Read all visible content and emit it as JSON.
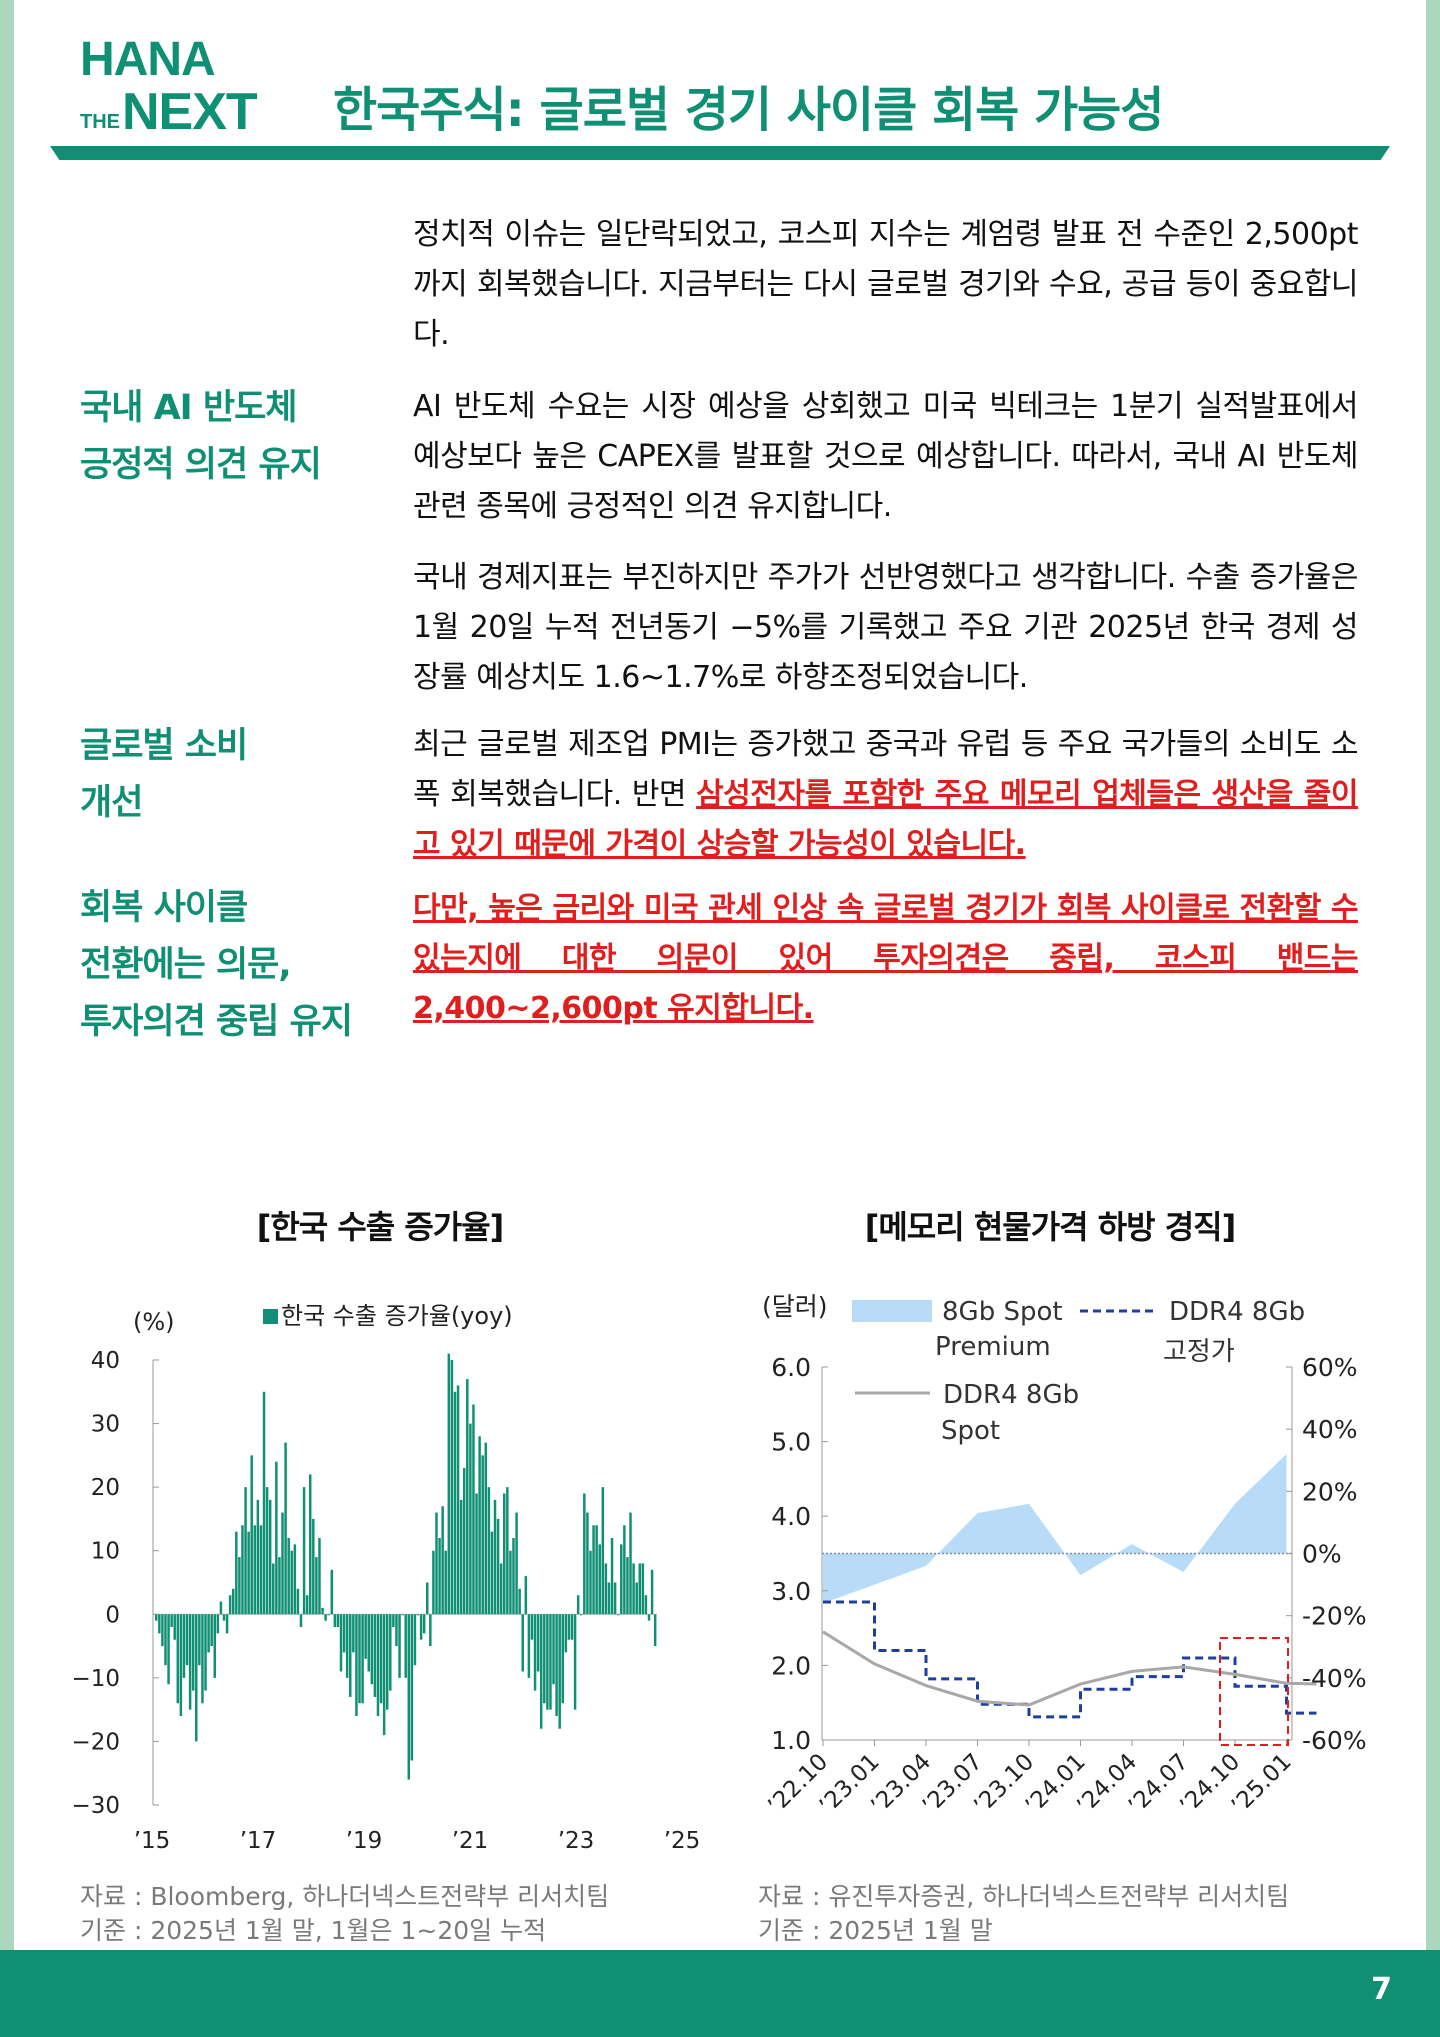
{
  "header": {
    "logo_top": "HANA",
    "logo_the": "THE",
    "logo_next": "NEXT",
    "title": "한국주식: 글로벌 경기 사이클 회복 가능성"
  },
  "sections": [
    {
      "label": "",
      "body": "정치적 이슈는 일단락되었고, 코스피 지수는 계엄령 발표 전 수준인 2,500pt 까지 회복했습니다. 지금부터는 다시 글로벌 경기와 수요, 공급 등이 중요합니다."
    },
    {
      "label": "국내 AI 반도체\n긍정적 의견 유지",
      "body": "AI 반도체 수요는 시장 예상을 상회했고 미국 빅테크는 1분기 실적발표에서 예상보다 높은 CAPEX를 발표할 것으로 예상합니다. 따라서, 국내 AI 반도체 관련 종목에 긍정적인 의견 유지합니다."
    },
    {
      "label": "",
      "body": "국내 경제지표는 부진하지만 주가가 선반영했다고 생각합니다. 수출 증가율은 1월 20일 누적 전년동기 −5%를 기록했고 주요 기관 2025년 한국 경제 성장률 예상치도 1.6~1.7%로 하향조정되었습니다."
    },
    {
      "label": "글로벌 소비\n개선",
      "body": "최근 글로벌 제조업 PMI는 증가했고 중국과 유럽 등 주요 국가들의 소비도 소폭 회복했습니다. 반면 ",
      "highlight": "삼성전자를 포함한 주요 메모리 업체들은 생산을 줄이고 있기 때문에 가격이 상승할 가능성이 있습니다."
    },
    {
      "label": "회복 사이클\n전환에는 의문,\n투자의견 중립 유지",
      "body": "",
      "highlight": "다만, 높은 금리와 미국 관세 인상 속 글로벌 경기가 회복 사이클로 전환할 수 있는지에 대한 의문이 있어 투자의견은 중립, 코스피 밴드는 2,400~2,600pt 유지합니다."
    }
  ],
  "charts": {
    "left_title": "[한국 수출 증가율]",
    "left_unit": "(%)",
    "left_legend": "한국 수출 증가율(yoy)",
    "left_yticks": [
      "40",
      "30",
      "20",
      "10",
      "0",
      "−10",
      "−20",
      "−30"
    ],
    "left_xticks": [
      "’15",
      "’17",
      "’19",
      "’21",
      "’23",
      "’25"
    ],
    "left_source": "자료 : Bloomberg, 하나더넥스트전략부 리서치팀",
    "left_basis": "기준 : 2025년 1월 말, 1월은 1~20일 누적",
    "right_title": "[메모리 현물가격 하방 경직]",
    "right_unit": "(달러)",
    "right_legend_premium": "8Gb Spot",
    "right_legend_premium2": "Premium",
    "right_legend_fixed": "DDR4 8Gb",
    "right_legend_fixed2": "고정가",
    "right_legend_spot": "DDR4 8Gb",
    "right_legend_spot2": "Spot",
    "right_yticks": [
      "6.0",
      "5.0",
      "4.0",
      "3.0",
      "2.0",
      "1.0"
    ],
    "right_y2ticks": [
      "60%",
      "40%",
      "20%",
      "0%",
      "-20%",
      "-40%",
      "-60%"
    ],
    "right_xticks": [
      "’22.10",
      "’23.01",
      "’23.04",
      "’23.07",
      "’23.10",
      "’24.01",
      "’24.04",
      "’24.07",
      "’24.10",
      "’25.01"
    ],
    "right_source": "자료 : 유진투자증권, 하나더넥스트전략부 리서치팀",
    "right_basis": "기준 : 2025년 1월 말"
  },
  "chart_data": [
    {
      "type": "bar",
      "title": "[한국 수출 증가율]",
      "ylabel": "(%)",
      "ylim": [
        -30,
        40
      ],
      "legend": "top",
      "series": [
        {
          "name": "한국 수출 증가율(yoy)",
          "color": "#0f8f73",
          "x_start": "2015-01",
          "values": [
            -1,
            -3,
            -5,
            -8,
            -11,
            -2,
            -4,
            -14,
            -16,
            -10,
            -8,
            -15,
            -12,
            -20,
            -8,
            -14,
            -12,
            -6,
            -5,
            -10,
            -3,
            2,
            -1,
            -3,
            3,
            4,
            13,
            9,
            14,
            20,
            13,
            25,
            14,
            18,
            14,
            35,
            20,
            18,
            8,
            24,
            9,
            16,
            27,
            12,
            10,
            11,
            4,
            -2,
            20,
            3,
            22,
            15,
            9,
            12,
            1,
            -1,
            0,
            7,
            -2,
            -2,
            -9,
            -6,
            -10,
            -13,
            -6,
            -16,
            -14,
            -14,
            -7,
            -9,
            -11,
            -13,
            -16,
            -14,
            -19,
            -15,
            -12,
            -2,
            -5,
            -10,
            0,
            -10,
            -26,
            -23,
            -8,
            0,
            -4,
            -3,
            5,
            -5,
            10,
            16,
            12,
            17,
            10,
            41,
            40,
            35,
            36,
            18,
            23,
            37,
            30,
            33,
            19,
            28,
            25,
            27,
            20,
            13,
            18,
            15,
            8,
            19,
            20,
            10,
            12,
            16,
            4,
            -9,
            6,
            -10,
            -4,
            -12,
            -9,
            -18,
            -14,
            -15,
            -15,
            -11,
            -16,
            -18,
            -14,
            -6,
            -4,
            -4,
            -15,
            3,
            0,
            19,
            16,
            10,
            14,
            14,
            11,
            20,
            8,
            5,
            12,
            5,
            0,
            11,
            14,
            9,
            16,
            8,
            5,
            8,
            8,
            3,
            -1,
            7,
            -5
          ]
        }
      ]
    },
    {
      "type": "line",
      "title": "[메모리 현물가격 하방 경직]",
      "ylabel": "(달러)",
      "ylim": [
        1.0,
        6.0
      ],
      "y2lim": [
        -60,
        60
      ],
      "x": [
        "’22.10",
        "’23.01",
        "’23.04",
        "’23.07",
        "’23.10",
        "’24.01",
        "’24.04",
        "’24.07",
        "’24.10",
        "’25.01"
      ],
      "series": [
        {
          "name": "DDR4 8Gb 고정가",
          "style": "dashed",
          "color": "#1f3f9f",
          "values": [
            2.85,
            2.2,
            1.82,
            1.48,
            1.31,
            1.68,
            1.85,
            2.1,
            1.72,
            1.36
          ]
        },
        {
          "name": "DDR4 8Gb Spot",
          "style": "solid",
          "color": "#a8a8a8",
          "values": [
            2.45,
            2.02,
            1.73,
            1.52,
            1.47,
            1.75,
            1.92,
            1.98,
            1.88,
            1.76
          ]
        },
        {
          "name": "8Gb Spot Premium",
          "style": "area",
          "color": "#b8dcf8",
          "axis": "right",
          "values": [
            -16,
            -10,
            -4,
            13,
            16,
            -7,
            3,
            -6,
            16,
            32
          ]
        }
      ]
    }
  ],
  "footer": {
    "page_number": "7"
  }
}
